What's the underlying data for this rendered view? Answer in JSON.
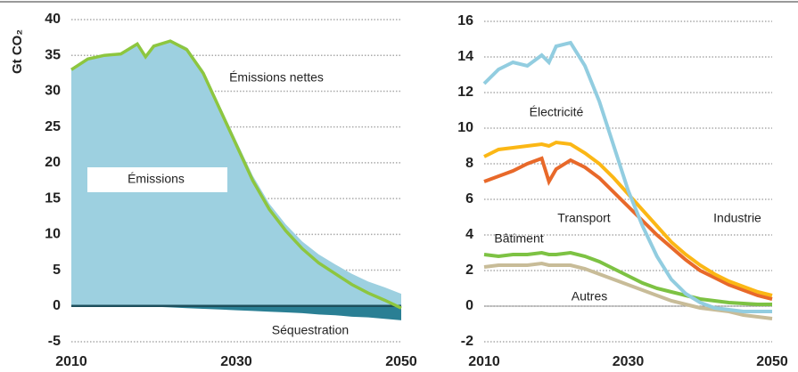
{
  "chart_data": [
    {
      "type": "area",
      "ylabel": "Gt CO₂",
      "x": [
        2010,
        2012,
        2014,
        2016,
        2018,
        2019,
        2020,
        2022,
        2024,
        2026,
        2028,
        2030,
        2032,
        2034,
        2036,
        2038,
        2040,
        2042,
        2044,
        2046,
        2048,
        2050
      ],
      "xlim": [
        2010,
        2050
      ],
      "xticks": [
        2010,
        2030,
        2050
      ],
      "ylim": [
        -5,
        40
      ],
      "yticks": [
        -5,
        0,
        5,
        10,
        15,
        20,
        25,
        30,
        35,
        40
      ],
      "grid": true,
      "series": [
        {
          "name": "Émissions",
          "color": "#9dd0e0",
          "values": [
            33,
            34.5,
            35,
            35.2,
            36.6,
            34.85,
            36.4,
            37.2,
            36.1,
            32.9,
            28,
            23.1,
            18.2,
            14.3,
            11.4,
            9,
            7.2,
            5.8,
            4.5,
            3.4,
            2.6,
            1.7
          ]
        },
        {
          "name": "Séquestration",
          "color": "#2a7f94",
          "values": [
            0,
            0,
            0,
            0,
            0,
            -0.05,
            -0.1,
            -0.2,
            -0.3,
            -0.4,
            -0.5,
            -0.6,
            -0.7,
            -0.8,
            -0.9,
            -1.0,
            -1.2,
            -1.3,
            -1.5,
            -1.6,
            -1.8,
            -2.0
          ]
        },
        {
          "name": "Émissions nettes",
          "color": "#8dc63f",
          "values": [
            33,
            34.5,
            35,
            35.2,
            36.6,
            34.8,
            36.3,
            37,
            35.8,
            32.5,
            27.5,
            22.5,
            17.5,
            13.5,
            10.5,
            8,
            6,
            4.5,
            3,
            1.8,
            0.8,
            -0.3
          ]
        }
      ]
    },
    {
      "type": "line",
      "x": [
        2010,
        2012,
        2014,
        2016,
        2018,
        2019,
        2020,
        2022,
        2024,
        2026,
        2028,
        2030,
        2032,
        2034,
        2036,
        2038,
        2040,
        2042,
        2044,
        2046,
        2048,
        2050
      ],
      "xlim": [
        2010,
        2050
      ],
      "xticks": [
        2010,
        2030,
        2050
      ],
      "ylim": [
        -2,
        16
      ],
      "yticks": [
        -2,
        0,
        2,
        4,
        6,
        8,
        10,
        12,
        14,
        16
      ],
      "grid": true,
      "series": [
        {
          "name": "Électricité",
          "color": "#92cde0",
          "values": [
            12.5,
            13.3,
            13.7,
            13.5,
            14.1,
            13.7,
            14.6,
            14.8,
            13.5,
            11.5,
            9,
            6.5,
            4.5,
            2.8,
            1.5,
            0.7,
            0.2,
            -0.1,
            -0.2,
            -0.3,
            -0.3,
            -0.3
          ]
        },
        {
          "name": "Transport",
          "color": "#e8692a",
          "values": [
            7.0,
            7.3,
            7.6,
            8.0,
            8.3,
            7.0,
            7.7,
            8.2,
            7.8,
            7.2,
            6.4,
            5.6,
            4.8,
            4.0,
            3.3,
            2.6,
            2.0,
            1.6,
            1.2,
            0.9,
            0.6,
            0.4
          ]
        },
        {
          "name": "Industrie",
          "color": "#fbb715",
          "values": [
            8.4,
            8.8,
            8.9,
            9.0,
            9.1,
            9.0,
            9.2,
            9.1,
            8.6,
            8.0,
            7.2,
            6.3,
            5.4,
            4.5,
            3.6,
            2.9,
            2.3,
            1.8,
            1.4,
            1.1,
            0.8,
            0.6
          ]
        },
        {
          "name": "Bâtiment",
          "color": "#7dc243",
          "values": [
            2.9,
            2.8,
            2.9,
            2.9,
            3.0,
            2.9,
            2.9,
            3.0,
            2.8,
            2.5,
            2.1,
            1.7,
            1.3,
            1.0,
            0.8,
            0.6,
            0.4,
            0.3,
            0.2,
            0.15,
            0.1,
            0.1
          ]
        },
        {
          "name": "Autres",
          "color": "#c8bc98",
          "values": [
            2.2,
            2.3,
            2.3,
            2.3,
            2.4,
            2.3,
            2.3,
            2.3,
            2.1,
            1.8,
            1.5,
            1.2,
            0.9,
            0.6,
            0.3,
            0.1,
            -0.1,
            -0.2,
            -0.3,
            -0.5,
            -0.6,
            -0.7
          ]
        }
      ]
    }
  ]
}
